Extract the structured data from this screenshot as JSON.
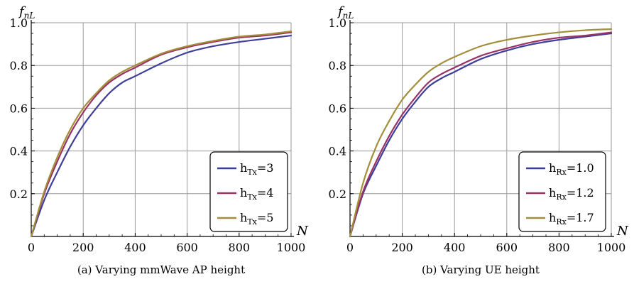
{
  "chart_data": [
    {
      "type": "line",
      "caption": "(a) Varying mmWave AP height",
      "ylabel_main": "f",
      "ylabel_sub": "nL",
      "xlabel": "N",
      "xlim": [
        0,
        1000
      ],
      "ylim": [
        0,
        1.0
      ],
      "xticks": [
        "0",
        "200",
        "400",
        "600",
        "800",
        "1000"
      ],
      "yticks": [
        "0.2",
        "0.4",
        "0.6",
        "0.8",
        "1.0"
      ],
      "grid": true,
      "legend_position": "bottom-right",
      "x": [
        0,
        50,
        100,
        150,
        200,
        250,
        300,
        350,
        400,
        500,
        600,
        700,
        800,
        900,
        1000
      ],
      "series": [
        {
          "name_main": "h",
          "name_sub": "Tx",
          "name_tail": "=3",
          "color": "#3f3f99",
          "values": [
            0.0,
            0.17,
            0.3,
            0.42,
            0.52,
            0.6,
            0.67,
            0.72,
            0.75,
            0.81,
            0.86,
            0.89,
            0.91,
            0.925,
            0.94
          ]
        },
        {
          "name_main": "h",
          "name_sub": "Tx",
          "name_tail": "=4",
          "color": "#993366",
          "values": [
            0.0,
            0.2,
            0.35,
            0.48,
            0.58,
            0.66,
            0.72,
            0.76,
            0.79,
            0.85,
            0.885,
            0.91,
            0.93,
            0.94,
            0.955
          ]
        },
        {
          "name_main": "h",
          "name_sub": "Tx",
          "name_tail": "=5",
          "color": "#a38f3a",
          "values": [
            0.0,
            0.21,
            0.37,
            0.5,
            0.6,
            0.67,
            0.73,
            0.77,
            0.8,
            0.855,
            0.89,
            0.915,
            0.935,
            0.945,
            0.96
          ]
        }
      ]
    },
    {
      "type": "line",
      "caption": "(b) Varying UE height",
      "ylabel_main": "f",
      "ylabel_sub": "nL",
      "xlabel": "N",
      "xlim": [
        0,
        1000
      ],
      "ylim": [
        0,
        1.0
      ],
      "xticks": [
        "0",
        "200",
        "400",
        "600",
        "800",
        "1000"
      ],
      "yticks": [
        "0.2",
        "0.4",
        "0.6",
        "0.8",
        "1.0"
      ],
      "grid": true,
      "legend_position": "bottom-right",
      "x": [
        0,
        50,
        100,
        150,
        200,
        250,
        300,
        350,
        400,
        500,
        600,
        700,
        800,
        900,
        1000
      ],
      "series": [
        {
          "name_main": "h",
          "name_sub": "Rx",
          "name_tail": "=1.0",
          "color": "#3f3f99",
          "values": [
            0.0,
            0.2,
            0.33,
            0.45,
            0.55,
            0.63,
            0.7,
            0.74,
            0.77,
            0.83,
            0.87,
            0.9,
            0.92,
            0.935,
            0.95
          ]
        },
        {
          "name_main": "h",
          "name_sub": "Rx",
          "name_tail": "=1.2",
          "color": "#993366",
          "values": [
            0.0,
            0.21,
            0.35,
            0.47,
            0.57,
            0.65,
            0.72,
            0.76,
            0.79,
            0.845,
            0.88,
            0.91,
            0.93,
            0.94,
            0.955
          ]
        },
        {
          "name_main": "h",
          "name_sub": "Rx",
          "name_tail": "=1.7",
          "color": "#a38f3a",
          "values": [
            0.0,
            0.25,
            0.42,
            0.54,
            0.64,
            0.71,
            0.77,
            0.81,
            0.84,
            0.89,
            0.92,
            0.94,
            0.955,
            0.965,
            0.97
          ]
        }
      ]
    }
  ]
}
